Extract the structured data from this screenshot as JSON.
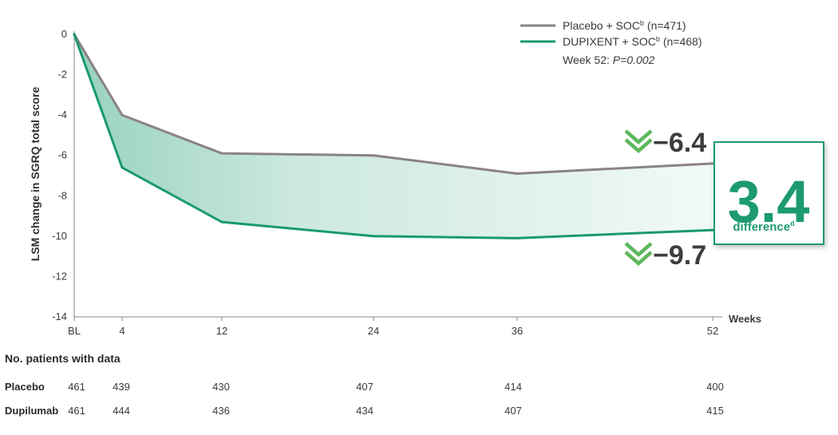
{
  "chart_data": {
    "type": "line",
    "title": "",
    "ylabel": "LSM change in SGRQ total score",
    "xlabel": "Weeks",
    "x_categories": [
      "BL",
      "4",
      "12",
      "24",
      "36",
      "52"
    ],
    "x_values": [
      0,
      4,
      12,
      24,
      36,
      52
    ],
    "ylim": [
      -14,
      0
    ],
    "yticks": [
      "0",
      "-2",
      "-4",
      "-6",
      "-8",
      "-10",
      "-12",
      "-14"
    ],
    "grid": false,
    "legend_position": "top-right",
    "series": [
      {
        "name": "Placebo + SOC",
        "name_superscript": "b",
        "n_label": "(n=471)",
        "color": "#8a8383",
        "values": [
          0,
          -4.0,
          -5.9,
          -6.0,
          -6.9,
          -6.4
        ]
      },
      {
        "name": "DUPIXENT + SOC",
        "name_superscript": "b",
        "n_label": "(n=468)",
        "color": "#1a9a6e",
        "values": [
          0,
          -6.6,
          -9.3,
          -10.0,
          -10.1,
          -9.7
        ]
      }
    ],
    "fill_between_color": "#5fc2a0",
    "p_value_label_prefix": "Week 52: ",
    "p_value_label": "P=0.002",
    "annotations": {
      "placebo_end": "−6.4",
      "dupixent_end": "−9.7",
      "difference_value": "3.4",
      "difference_label": "difference",
      "difference_superscript": "d"
    },
    "patients_table": {
      "title": "No. patients with data",
      "rows": [
        {
          "label": "Placebo",
          "values": [
            "461",
            "439",
            "430",
            "407",
            "414",
            "400"
          ]
        },
        {
          "label": "Dupilumab",
          "values": [
            "461",
            "444",
            "436",
            "434",
            "407",
            "415"
          ]
        }
      ]
    },
    "colors": {
      "accent_green": "#1a9a6e",
      "arrow_green": "#5cb85c",
      "placebo_gray": "#8a8383",
      "callout_border": "#1a9a6e"
    }
  }
}
